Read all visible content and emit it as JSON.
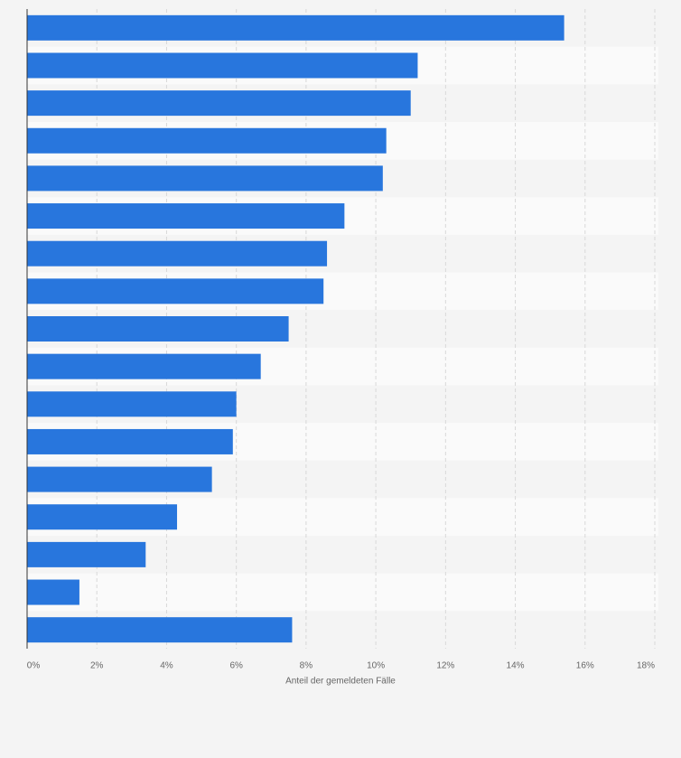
{
  "chart_data": {
    "type": "bar",
    "orientation": "horizontal",
    "x_label": "Anteil der gemeldeten Fälle",
    "categories": [
      null,
      null,
      null,
      null,
      null,
      null,
      null,
      null,
      null,
      null,
      null,
      null,
      null,
      null,
      null,
      null,
      null
    ],
    "values": [
      15.4,
      11.2,
      11.0,
      10.3,
      10.2,
      9.1,
      8.6,
      8.5,
      7.5,
      6.7,
      6.0,
      5.9,
      5.3,
      4.3,
      3.4,
      1.5,
      7.6
    ],
    "color": "#2876dd",
    "xlim": [
      0,
      18
    ],
    "xticks": [
      {
        "value": 0,
        "label": "0%"
      },
      {
        "value": 2,
        "label": "2%"
      },
      {
        "value": 4,
        "label": "4%"
      },
      {
        "value": 6,
        "label": "6%"
      },
      {
        "value": 8,
        "label": "8%"
      },
      {
        "value": 10,
        "label": "10%"
      },
      {
        "value": 12,
        "label": "12%"
      },
      {
        "value": 14,
        "label": "14%"
      },
      {
        "value": 16,
        "label": "16%"
      },
      {
        "value": 18,
        "label": "18%"
      }
    ],
    "grid": true
  }
}
